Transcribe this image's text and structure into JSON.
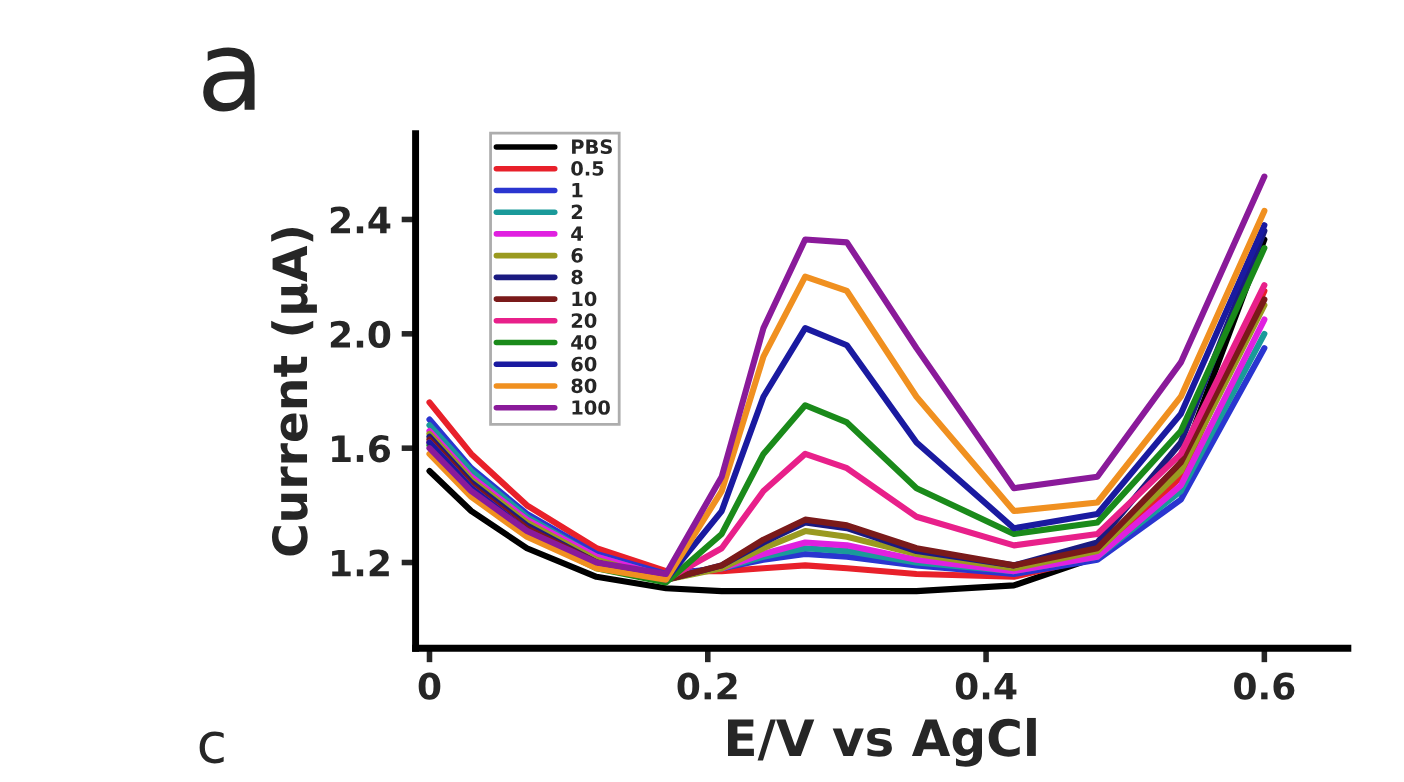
{
  "chart_data": {
    "type": "line",
    "xlabel": "E/V vs AgCl",
    "ylabel": "Current (μA)",
    "annotations": [
      "a",
      "c"
    ],
    "x": [
      0,
      0.03,
      0.07,
      0.12,
      0.17,
      0.21,
      0.24,
      0.27,
      0.3,
      0.35,
      0.42,
      0.48,
      0.54,
      0.6
    ],
    "xlim": [
      -0.01,
      0.66
    ],
    "ylim": [
      0.9,
      2.7
    ],
    "xticks": [
      0,
      0.2,
      0.4,
      0.6
    ],
    "yticks": [
      1.2,
      1.6,
      {
        "value": 2.0,
        "label": "2.0"
      },
      2.4
    ],
    "grid": false,
    "legend": "top left",
    "marker": "none",
    "line_style": "solid",
    "series": [
      {
        "name": "PBS",
        "color": "#000000",
        "values": [
          1.52,
          1.38,
          1.25,
          1.15,
          1.11,
          1.1,
          1.1,
          1.1,
          1.1,
          1.1,
          1.12,
          1.22,
          1.55,
          2.33
        ]
      },
      {
        "name": "0.5",
        "color": "#e8202a",
        "values": [
          1.76,
          1.58,
          1.4,
          1.25,
          1.17,
          1.17,
          1.18,
          1.19,
          1.18,
          1.16,
          1.15,
          1.22,
          1.5,
          2.15
        ]
      },
      {
        "name": "1",
        "color": "#2a35d0",
        "values": [
          1.7,
          1.53,
          1.37,
          1.23,
          1.16,
          1.18,
          1.21,
          1.23,
          1.22,
          1.19,
          1.16,
          1.21,
          1.42,
          1.95
        ]
      },
      {
        "name": "2",
        "color": "#1a9a9a",
        "values": [
          1.68,
          1.52,
          1.36,
          1.22,
          1.15,
          1.18,
          1.22,
          1.25,
          1.24,
          1.2,
          1.17,
          1.22,
          1.45,
          2.0
        ]
      },
      {
        "name": "4",
        "color": "#e020e0",
        "values": [
          1.66,
          1.5,
          1.35,
          1.22,
          1.15,
          1.18,
          1.23,
          1.27,
          1.26,
          1.21,
          1.17,
          1.22,
          1.47,
          2.05
        ]
      },
      {
        "name": "6",
        "color": "#9a9a20",
        "values": [
          1.65,
          1.49,
          1.34,
          1.21,
          1.14,
          1.18,
          1.25,
          1.31,
          1.29,
          1.23,
          1.18,
          1.24,
          1.52,
          2.1
        ]
      },
      {
        "name": "8",
        "color": "#1a1a80",
        "values": [
          1.64,
          1.48,
          1.33,
          1.2,
          1.14,
          1.19,
          1.27,
          1.34,
          1.32,
          1.24,
          1.19,
          1.27,
          1.62,
          2.36
        ]
      },
      {
        "name": "10",
        "color": "#7a1a1a",
        "values": [
          1.63,
          1.47,
          1.32,
          1.2,
          1.14,
          1.19,
          1.28,
          1.35,
          1.33,
          1.25,
          1.19,
          1.25,
          1.55,
          2.12
        ]
      },
      {
        "name": "20",
        "color": "#e8208a",
        "values": [
          1.62,
          1.46,
          1.31,
          1.19,
          1.14,
          1.25,
          1.45,
          1.58,
          1.53,
          1.36,
          1.26,
          1.3,
          1.58,
          2.17
        ]
      },
      {
        "name": "40",
        "color": "#1a8a1a",
        "values": [
          1.61,
          1.45,
          1.3,
          1.18,
          1.13,
          1.3,
          1.58,
          1.75,
          1.69,
          1.46,
          1.3,
          1.34,
          1.66,
          2.3
        ]
      },
      {
        "name": "60",
        "color": "#1a1aa0",
        "values": [
          1.62,
          1.46,
          1.31,
          1.19,
          1.14,
          1.38,
          1.78,
          2.02,
          1.96,
          1.62,
          1.32,
          1.37,
          1.72,
          2.38
        ]
      },
      {
        "name": "80",
        "color": "#f09020",
        "values": [
          1.58,
          1.43,
          1.29,
          1.18,
          1.14,
          1.45,
          1.92,
          2.2,
          2.15,
          1.78,
          1.38,
          1.41,
          1.78,
          2.43
        ]
      },
      {
        "name": "100",
        "color": "#8a1a9a",
        "values": [
          1.6,
          1.45,
          1.31,
          1.2,
          1.16,
          1.5,
          2.02,
          2.33,
          2.32,
          1.95,
          1.46,
          1.5,
          1.9,
          2.55
        ]
      }
    ]
  }
}
